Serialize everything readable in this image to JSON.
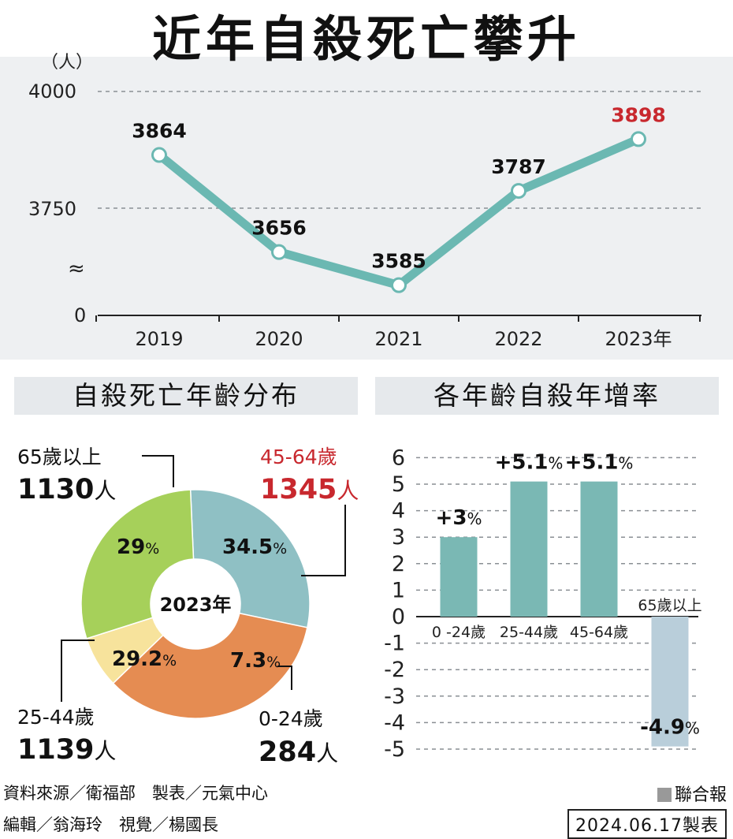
{
  "title": "近年自殺死亡攀升",
  "line_chart": {
    "unit": "（人）",
    "y_ticks": [
      "4000",
      "3750",
      "0"
    ],
    "break_symbol": "≈",
    "year_suffix": "年"
  },
  "donut": {
    "section_title": "自殺死亡年齡分布",
    "center_label": "2023年",
    "groups": {
      "g65": {
        "name": "65歲以上",
        "count": "1130",
        "unit": "人",
        "percent": "29",
        "pct_sign": "%"
      },
      "g45": {
        "name": "45-64歲",
        "count": "1345",
        "unit": "人",
        "percent": "34.5",
        "pct_sign": "%"
      },
      "g25": {
        "name": "25-44歲",
        "count": "1139",
        "unit": "人",
        "percent": "29.2",
        "pct_sign": "%"
      },
      "g0": {
        "name": "0-24歲",
        "count": "284",
        "unit": "人",
        "percent": "7.3",
        "pct_sign": "%"
      }
    }
  },
  "bars": {
    "section_title": "各年齡自殺年增率",
    "pct_sign": "%"
  },
  "colors": {
    "line": "#6bb8b2",
    "teal_bar": "#7ab8b4",
    "neg_bar": "#b9ceda",
    "highlight": "#c8282e",
    "slice_65": "#8fc0c4",
    "slice_45": "#e58c52",
    "slice_0": "#f7e39c",
    "slice_25": "#a6d05a"
  },
  "chart_data": [
    {
      "type": "line",
      "x": [
        "2019",
        "2020",
        "2021",
        "2022",
        "2023"
      ],
      "x_suffix": "年",
      "series": [
        {
          "values": [
            3864,
            3656,
            3585,
            3787,
            3898
          ]
        }
      ],
      "ylabel": "（人）",
      "y_ticks": [
        0,
        3750,
        4000
      ],
      "axis_break": true
    },
    {
      "type": "pie",
      "categories": [
        "65歲以上",
        "45-64歲",
        "0-24歲",
        "25-44歲"
      ],
      "values": [
        29,
        34.5,
        7.3,
        29.2
      ],
      "counts": [
        1130,
        1345,
        284,
        1139
      ]
    },
    {
      "type": "bar",
      "categories": [
        "0 -24歲",
        "25-44歲",
        "45-64歲",
        "65歲以上"
      ],
      "values": [
        3,
        5.1,
        5.1,
        -4.9
      ],
      "labels": [
        "+3",
        "+5.1",
        "+5.1",
        "-4.9"
      ],
      "ylim": [
        -5,
        6
      ],
      "y_ticks": [
        6,
        5,
        4,
        3,
        2,
        1,
        0,
        -1,
        -2,
        -3,
        -4,
        -5
      ]
    }
  ],
  "footer": {
    "source": "資料來源／衛福部　製表／元氣中心",
    "editors": "編輯／翁海玲　視覺／楊國長",
    "brand": "聯合報",
    "date": "2024.06.17製表"
  }
}
